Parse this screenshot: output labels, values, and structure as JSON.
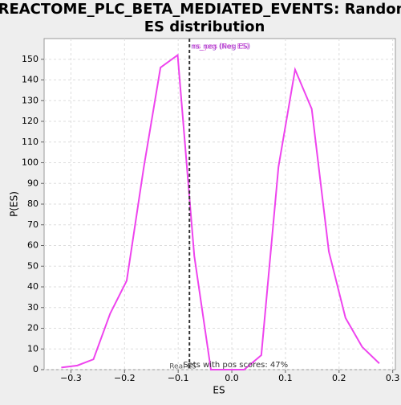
{
  "chart_data": {
    "type": "line",
    "title": [
      "REACTOME_PLC_BETA_MEDIATED_EVENTS: Random",
      "ES distribution"
    ],
    "xlabel": "ES",
    "ylabel": "P(ES)",
    "x": [
      -0.318,
      -0.288,
      -0.258,
      -0.227,
      -0.196,
      -0.164,
      -0.133,
      -0.101,
      -0.07,
      -0.039,
      -0.008,
      0.023,
      0.055,
      0.087,
      0.118,
      0.149,
      0.181,
      0.212,
      0.243,
      0.275
    ],
    "series": [
      {
        "color": "#ee44ee",
        "values": [
          1,
          2,
          5,
          27,
          43,
          98,
          146,
          152,
          55,
          0,
          0,
          0,
          7,
          98,
          145,
          126,
          57,
          25,
          11,
          3
        ]
      }
    ],
    "xlim": [
      -0.35,
      0.305
    ],
    "ylim": [
      0,
      160
    ],
    "xticks": [
      {
        "value": -0.3,
        "label": "−0.3"
      },
      {
        "value": -0.2,
        "label": "−0.2"
      },
      {
        "value": -0.1,
        "label": "−0.1"
      },
      {
        "value": 0,
        "label": "0.0"
      },
      0.1,
      0.2,
      0.3
    ],
    "yticks": [
      0,
      10,
      20,
      30,
      40,
      50,
      60,
      70,
      80,
      90,
      100,
      110,
      120,
      130,
      140,
      150
    ],
    "grid": true,
    "vline": {
      "x": -0.079,
      "label": "Real ES"
    },
    "annotations": [
      "ns_neg (Neg ES)",
      "ns_pos (Pos ES)"
    ],
    "footnote": "Sets with pos scores: 47%"
  }
}
